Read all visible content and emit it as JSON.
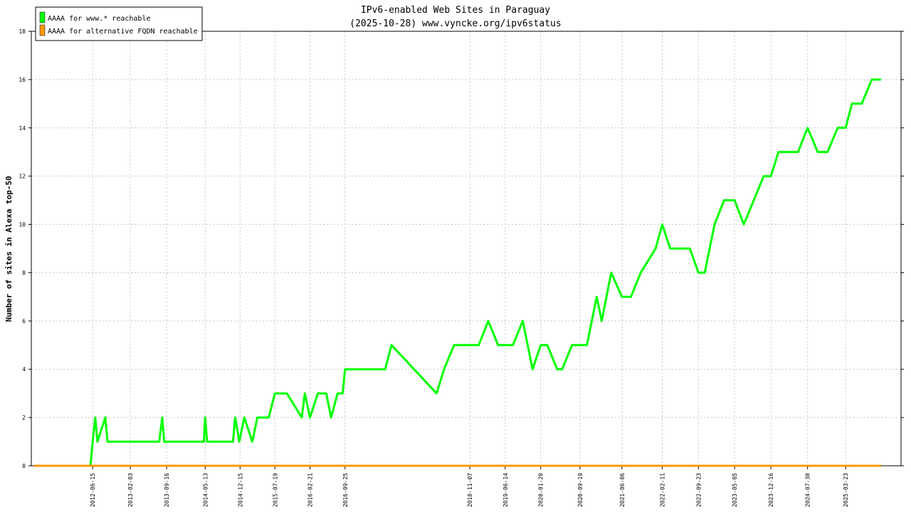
{
  "chart_data": {
    "type": "line",
    "title": "IPv6-enabled Web Sites in Paraguay",
    "subtitle": "(2025-10-28) www.vyncke.org/ipv6status",
    "ylabel": "Number of sites in Alexa top-50",
    "xlabel": "",
    "ylim": [
      0,
      18
    ],
    "yticks": [
      0,
      2,
      4,
      6,
      8,
      10,
      12,
      14,
      16,
      18
    ],
    "xlim": [
      "2011-06-01",
      "2026-03-01"
    ],
    "xticks": [
      "2012-06-15",
      "2013-02-03",
      "2013-09-16",
      "2014-05-13",
      "2014-12-15",
      "2015-07-19",
      "2016-02-21",
      "2016-09-25",
      "2018-11-07",
      "2019-06-14",
      "2020-01-20",
      "2020-09-19",
      "2021-06-06",
      "2022-02-11",
      "2022-09-23",
      "2023-05-05",
      "2023-12-16",
      "2024-07-30",
      "2025-03-23"
    ],
    "grid": true,
    "legend_position": "top-left",
    "legend": [
      "AAAA for www.* reachable",
      "AAAA for alternative FQDN reachable"
    ],
    "colors": {
      "www": "#00ff00",
      "alt": "#ff9900"
    },
    "series": [
      {
        "name": "AAAA for www.* reachable",
        "color": "#00ff00",
        "x": [
          "2012-06-01",
          "2012-06-15",
          "2012-07-01",
          "2012-07-15",
          "2012-09-01",
          "2012-09-15",
          "2013-01-01",
          "2013-01-15",
          "2013-02-01",
          "2013-02-10",
          "2013-08-01",
          "2013-08-20",
          "2013-09-01",
          "2013-09-10",
          "2014-05-05",
          "2014-05-13",
          "2014-05-25",
          "2014-11-01",
          "2014-11-15",
          "2014-12-10",
          "2015-01-10",
          "2015-03-01",
          "2015-04-01",
          "2015-06-10",
          "2015-07-19",
          "2015-09-01",
          "2015-10-01",
          "2016-01-01",
          "2016-01-20",
          "2016-02-21",
          "2016-04-10",
          "2016-06-01",
          "2016-07-01",
          "2016-08-10",
          "2016-09-10",
          "2016-09-25",
          "2017-06-01",
          "2017-07-10",
          "2018-04-15",
          "2018-06-01",
          "2018-08-01",
          "2018-10-01",
          "2018-11-07",
          "2019-01-01",
          "2019-03-01",
          "2019-05-01",
          "2019-06-14",
          "2019-08-01",
          "2019-10-01",
          "2019-12-01",
          "2020-01-20",
          "2020-03-01",
          "2020-05-01",
          "2020-06-01",
          "2020-08-01",
          "2020-09-19",
          "2020-11-01",
          "2021-01-01",
          "2021-02-01",
          "2021-04-01",
          "2021-06-06",
          "2021-08-01",
          "2021-10-01",
          "2022-01-01",
          "2022-02-11",
          "2022-04-01",
          "2022-06-01",
          "2022-08-01",
          "2022-09-23",
          "2022-11-01",
          "2023-01-01",
          "2023-03-01",
          "2023-05-05",
          "2023-07-01",
          "2023-09-01",
          "2023-11-01",
          "2023-12-16",
          "2024-02-01",
          "2024-04-01",
          "2024-06-01",
          "2024-07-30",
          "2024-10-01",
          "2024-12-01",
          "2025-02-01",
          "2025-03-23",
          "2025-05-01",
          "2025-07-01",
          "2025-09-01",
          "2025-10-28"
        ],
        "y": [
          0,
          1,
          2,
          1,
          2,
          1,
          1,
          1,
          1,
          1,
          1,
          2,
          1,
          1,
          1,
          2,
          1,
          1,
          2,
          1,
          2,
          1,
          2,
          2,
          3,
          3,
          3,
          2,
          3,
          2,
          3,
          3,
          2,
          3,
          3,
          4,
          4,
          5,
          3,
          4,
          5,
          5,
          5,
          5,
          6,
          5,
          5,
          5,
          6,
          4,
          5,
          5,
          4,
          4,
          5,
          5,
          5,
          7,
          6,
          8,
          7,
          7,
          8,
          9,
          10,
          9,
          9,
          9,
          8,
          8,
          10,
          11,
          11,
          10,
          11,
          12,
          12,
          13,
          13,
          13,
          14,
          13,
          13,
          14,
          14,
          15,
          15,
          16,
          16
        ]
      },
      {
        "name": "AAAA for alternative FQDN reachable",
        "color": "#ff9900",
        "x": [
          "2011-06-20",
          "2025-10-28"
        ],
        "y": [
          0,
          0
        ]
      }
    ]
  }
}
